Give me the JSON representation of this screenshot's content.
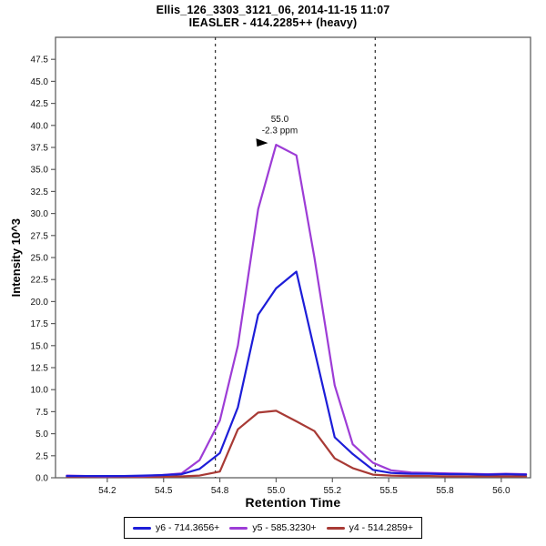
{
  "chart_data": {
    "type": "line",
    "title": "Ellis_126_3303_3121_06, 2014-11-15 11:07",
    "subtitle": "IEASLER - 414.2285++ (heavy)",
    "xlabel": "Retention Time",
    "ylabel": "Intensity 10^3",
    "xlim": [
      54.02,
      56.13
    ],
    "ylim": [
      0,
      50
    ],
    "grid": false,
    "legend_position": "bottom-center",
    "x_ticks": {
      "values": [
        54.25,
        54.5,
        54.75,
        55.0,
        55.25,
        55.5,
        55.75,
        56.0
      ],
      "labels": [
        "54.2",
        "54.5",
        "54.8",
        "55.0",
        "55.2",
        "55.5",
        "55.8",
        "56.0"
      ]
    },
    "y_ticks": {
      "values": [
        0,
        2.5,
        5,
        7.5,
        10,
        12.5,
        15,
        17.5,
        20,
        22.5,
        25,
        27.5,
        30,
        32.5,
        35,
        37.5,
        40,
        42.5,
        45,
        47.5
      ],
      "labels": [
        "0.0",
        "2.5",
        "5.0",
        "7.5",
        "10.0",
        "12.5",
        "15.0",
        "17.5",
        "20.0",
        "22.5",
        "25.0",
        "27.5",
        "30.0",
        "32.5",
        "35.0",
        "37.5",
        "40.0",
        "42.5",
        "45.0",
        "47.5"
      ]
    },
    "x": [
      54.07,
      54.16,
      54.24,
      54.32,
      54.41,
      54.49,
      54.58,
      54.66,
      54.75,
      54.83,
      54.92,
      55.0,
      55.09,
      55.17,
      55.26,
      55.34,
      55.43,
      55.51,
      55.6,
      55.68,
      55.77,
      55.85,
      55.94,
      56.02,
      56.11
    ],
    "series": [
      {
        "name": "y6 - 714.3656+",
        "color": "#1d1dd8",
        "values": [
          0.2,
          0.2,
          0.2,
          0.2,
          0.25,
          0.3,
          0.4,
          1.0,
          2.8,
          8.0,
          18.5,
          21.5,
          23.4,
          14.5,
          4.6,
          2.7,
          0.9,
          0.55,
          0.45,
          0.45,
          0.4,
          0.4,
          0.35,
          0.4,
          0.35
        ]
      },
      {
        "name": "y5 - 585.3230+",
        "color": "#9d3cd6",
        "values": [
          0.25,
          0.2,
          0.15,
          0.2,
          0.2,
          0.3,
          0.5,
          2.0,
          6.5,
          15.0,
          30.5,
          37.8,
          36.6,
          25.0,
          10.5,
          3.8,
          1.7,
          0.85,
          0.6,
          0.55,
          0.5,
          0.45,
          0.4,
          0.45,
          0.4
        ]
      },
      {
        "name": "y4 - 514.2859+",
        "color": "#a83a35",
        "values": [
          0.1,
          0.1,
          0.1,
          0.1,
          0.1,
          0.1,
          0.15,
          0.25,
          0.7,
          5.5,
          7.4,
          7.6,
          6.4,
          5.3,
          2.2,
          1.1,
          0.35,
          0.25,
          0.2,
          0.2,
          0.15,
          0.15,
          0.15,
          0.15,
          0.15
        ]
      }
    ],
    "peak_boundaries": [
      54.73,
      55.44
    ],
    "peak_annotation": {
      "x": 55.0,
      "y": 37.9,
      "lines": [
        "55.0",
        "-2.3 ppm"
      ],
      "color": "#9d3cd6"
    },
    "colors": {
      "axis": "#606060",
      "tick_label": "#111111",
      "boundary_line": "#2b2b2b",
      "annotation_arrow": "#000000",
      "background": "#ffffff"
    }
  }
}
